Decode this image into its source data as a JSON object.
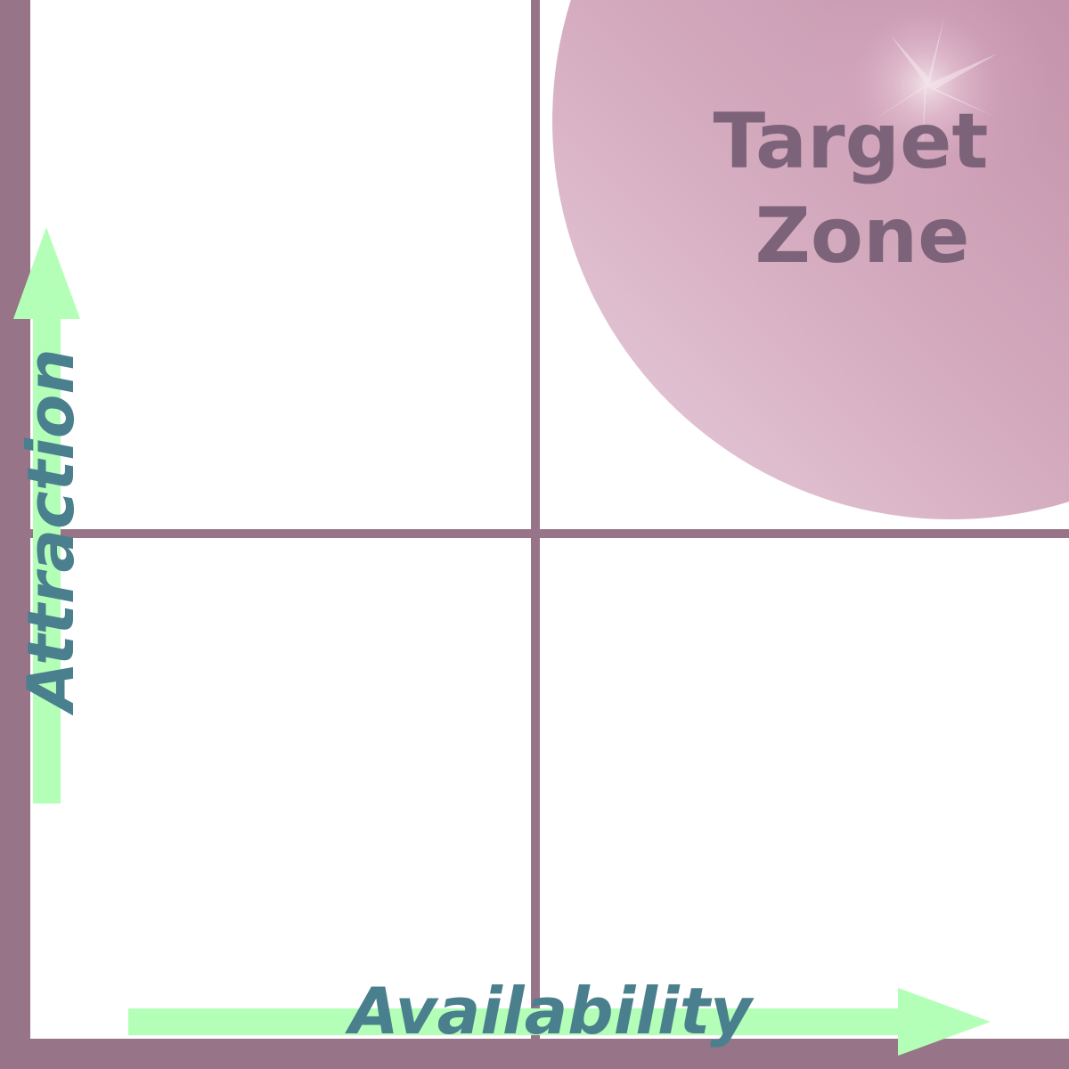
{
  "diagram": {
    "zone_label_line1": "Target",
    "zone_label_line2": "Zone",
    "x_axis_label": "Availability",
    "y_axis_label": "Attraction"
  },
  "colors": {
    "frame": "#987488",
    "arrow": "#b4ffb7",
    "axis_text": "#4a7f8e",
    "zone_text": "#7d6379",
    "zone_light": "#ddc0d2",
    "zone_mid": "#c797b1",
    "zone_dark": "#ab7890"
  }
}
